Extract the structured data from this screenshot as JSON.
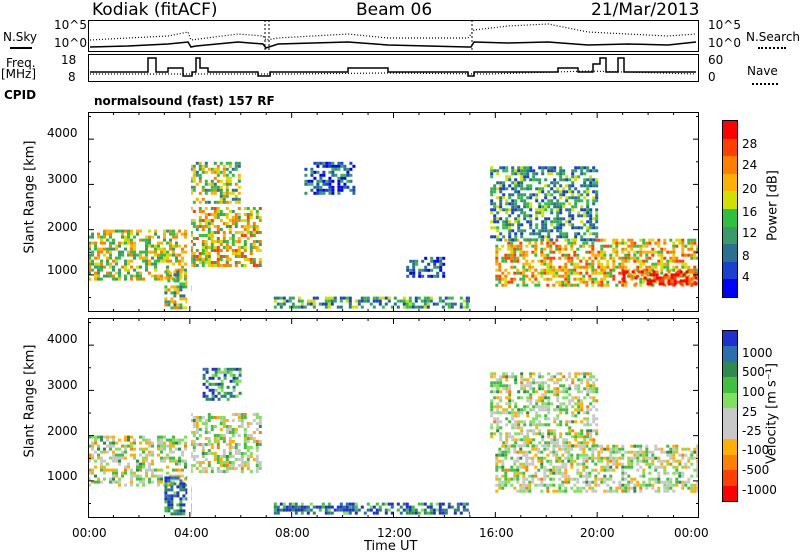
{
  "header": {
    "left": "Kodiak (fitACF)",
    "center": "Beam 06",
    "right": "21/Mar/2013"
  },
  "left_labels": {
    "nsky": "N.Sky",
    "nsky_top": "10^5",
    "nsky_bot": "10^0",
    "freq": "Freq.",
    "freq_unit": "[MHz]",
    "freq_top": "18",
    "freq_bot": "8",
    "cpid": "CPID"
  },
  "right_labels": {
    "nsearch": "N.Search",
    "nsearch_top": "10^5",
    "nsearch_bot": "10^0",
    "nave": "Nave",
    "nave_top": "60",
    "nave_bot": "0"
  },
  "mode_text": "normalsound (fast) 157 RF",
  "chart_data": [
    {
      "type": "heatmap",
      "title": "",
      "ylabel": "Slant Range [km]",
      "ylim": [
        180,
        4600
      ],
      "yticks": [
        "1000",
        "2000",
        "3000",
        "4000"
      ],
      "colorbar": {
        "label": "Power [dB]",
        "ticks": [
          "28",
          "24",
          "20",
          "16",
          "12",
          "8",
          "4"
        ],
        "colors": [
          "#ff0000",
          "#ff4000",
          "#ff8000",
          "#ffb000",
          "#d0e000",
          "#30c040",
          "#3a9a6a",
          "#2a7090",
          "#1a40d0",
          "#0000ff"
        ]
      },
      "bands": [
        {
          "x0": 0.0,
          "x1": 3.8,
          "y0": 900,
          "y1": 2000,
          "level": 0.55
        },
        {
          "x0": 3.0,
          "x1": 4.0,
          "y0": 300,
          "y1": 1100,
          "level": 0.5
        },
        {
          "x0": 4.0,
          "x1": 6.8,
          "y0": 1200,
          "y1": 2500,
          "level": 0.6
        },
        {
          "x0": 4.0,
          "x1": 6.0,
          "y0": 2600,
          "y1": 3500,
          "level": 0.5
        },
        {
          "x0": 7.3,
          "x1": 15.0,
          "y0": 300,
          "y1": 520,
          "level": 0.35
        },
        {
          "x0": 8.5,
          "x1": 10.5,
          "y0": 2800,
          "y1": 3500,
          "level": 0.2
        },
        {
          "x0": 12.5,
          "x1": 14.0,
          "y0": 1000,
          "y1": 1400,
          "level": 0.2
        },
        {
          "x0": 16.0,
          "x1": 24.0,
          "y0": 800,
          "y1": 1800,
          "level": 0.65
        },
        {
          "x0": 15.8,
          "x1": 20.0,
          "y0": 1800,
          "y1": 3400,
          "level": 0.35
        },
        {
          "x0": 21.0,
          "x1": 24.0,
          "y0": 800,
          "y1": 1100,
          "level": 0.95
        }
      ]
    },
    {
      "type": "heatmap",
      "title": "",
      "xlabel": "Time UT",
      "ylabel": "Slant Range [km]",
      "ylim": [
        180,
        4600
      ],
      "yticks": [
        "1000",
        "2000",
        "3000",
        "4000"
      ],
      "xticks": [
        "00:00",
        "04:00",
        "08:00",
        "12:00",
        "16:00",
        "20:00",
        "00:00"
      ],
      "colorbar": {
        "label": "Velocity [m s⁻¹]",
        "ticks": [
          "1000",
          "500",
          "100",
          "25",
          "-25",
          "-100",
          "-500",
          "-1000"
        ],
        "colors": [
          "#2030d0",
          "#2a70b0",
          "#2e8a50",
          "#40c040",
          "#80e060",
          "#c8c8c8",
          "#c8c8c8",
          "#ffb000",
          "#ff8000",
          "#ff4000",
          "#ff0000"
        ]
      },
      "bands": [
        {
          "x0": 0.0,
          "x1": 3.8,
          "y0": 900,
          "y1": 2000,
          "level": 0.5
        },
        {
          "x0": 3.0,
          "x1": 4.0,
          "y0": 300,
          "y1": 1100,
          "level": 0.85
        },
        {
          "x0": 4.0,
          "x1": 6.8,
          "y0": 1200,
          "y1": 2500,
          "level": 0.5
        },
        {
          "x0": 4.5,
          "x1": 6.0,
          "y0": 2800,
          "y1": 3500,
          "level": 0.8
        },
        {
          "x0": 7.3,
          "x1": 15.0,
          "y0": 300,
          "y1": 520,
          "level": 0.85
        },
        {
          "x0": 16.0,
          "x1": 24.0,
          "y0": 800,
          "y1": 1800,
          "level": 0.5
        },
        {
          "x0": 15.8,
          "x1": 20.0,
          "y0": 1800,
          "y1": 3400,
          "level": 0.5
        }
      ]
    }
  ]
}
